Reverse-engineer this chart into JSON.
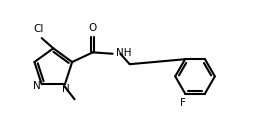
{
  "bg_color": "#ffffff",
  "bond_color": "#000000",
  "text_color": "#000000",
  "line_width": 1.5,
  "font_size": 7.5,
  "xlim": [
    0,
    10
  ],
  "ylim": [
    0,
    5
  ]
}
